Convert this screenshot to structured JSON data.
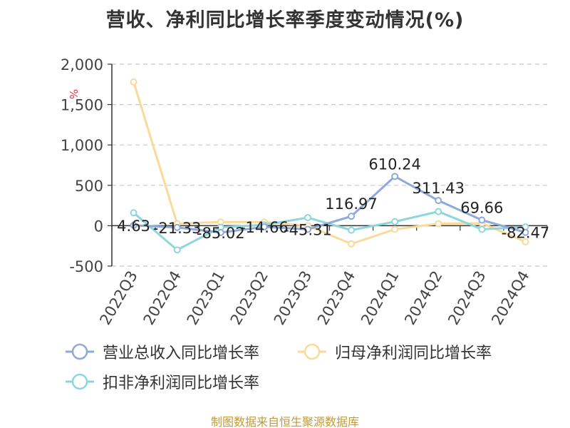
{
  "title": "营收、净利同比增长率季度变动情况(%)",
  "footer": "制图数据来自恒生聚源数据库",
  "chart_data": {
    "type": "line",
    "y_unit": "%",
    "categories": [
      "2022Q3",
      "2022Q4",
      "2023Q1",
      "2023Q2",
      "2023Q3",
      "2023Q4",
      "2024Q1",
      "2024Q2",
      "2024Q3",
      "2024Q4"
    ],
    "ylim": [
      -500,
      2000
    ],
    "yticks": [
      -500,
      0,
      500,
      1000,
      1500,
      2000
    ],
    "ytick_labels": [
      "-500",
      "0",
      "500",
      "1,000",
      "1,500",
      "2,000"
    ],
    "grid": true,
    "legend_position": "bottom",
    "series": [
      {
        "name": "营业总收入同比增长率",
        "color": "#8fa9d9",
        "values": [
          4.63,
          -21.33,
          -85.02,
          -14.66,
          -45.31,
          116.97,
          610.24,
          311.43,
          69.66,
          -82.47
        ],
        "labels": [
          "4.63",
          "-21.33",
          "-85.02",
          "-14.66",
          "-45.31",
          "116.97",
          "610.24",
          "311.43",
          "69.66",
          "-82.47"
        ]
      },
      {
        "name": "归母净利润同比增长率",
        "color": "#fbd99a",
        "values": [
          1780,
          25,
          45,
          45,
          0,
          -225,
          -45,
          25,
          30,
          -200
        ]
      },
      {
        "name": "扣非净利润同比增长率",
        "color": "#8ed6dc",
        "values": [
          160,
          -300,
          -20,
          10,
          100,
          -55,
          50,
          175,
          -45,
          -15
        ]
      }
    ]
  }
}
